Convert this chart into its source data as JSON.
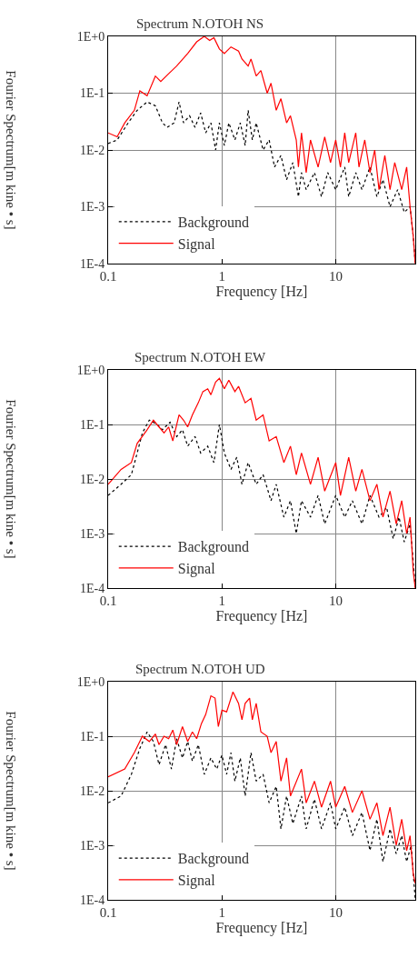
{
  "chart_data": [
    {
      "type": "line",
      "title": "Spectrum N.OTOH NS",
      "xlabel": "Frequency [Hz]",
      "ylabel": "Fourier Spectrum[m kine • s]",
      "log": "xy",
      "grid": true,
      "legend": "bottom left",
      "xlim": [
        0.1,
        50
      ],
      "ylim": [
        0.0001,
        1
      ],
      "xticks": [
        0.1,
        1,
        10
      ],
      "yticks": [
        {
          "value": 0.0001,
          "label": "1E-4"
        },
        {
          "value": 0.001,
          "label": "1E-3"
        },
        {
          "value": 0.01,
          "label": "1E-2"
        },
        {
          "value": 0.1,
          "label": "1E-1"
        },
        {
          "value": 1,
          "label": "1E+0"
        }
      ],
      "series": [
        {
          "name": "Background",
          "color": "#000000",
          "line_style": "dotted",
          "x": [
            0.1,
            0.12,
            0.15,
            0.18,
            0.22,
            0.26,
            0.3,
            0.33,
            0.38,
            0.42,
            0.46,
            0.52,
            0.58,
            0.65,
            0.72,
            0.8,
            0.88,
            0.95,
            1.05,
            1.15,
            1.3,
            1.45,
            1.6,
            1.7,
            1.85,
            2.0,
            2.3,
            2.6,
            2.9,
            3.3,
            3.7,
            4.2,
            4.7,
            5,
            5.5,
            6.5,
            7.5,
            8.5,
            10,
            12,
            13,
            15,
            17,
            20,
            23,
            26,
            30,
            35,
            40,
            45,
            48,
            50
          ],
          "values": [
            0.013,
            0.015,
            0.03,
            0.05,
            0.07,
            0.06,
            0.03,
            0.025,
            0.03,
            0.07,
            0.03,
            0.04,
            0.025,
            0.045,
            0.02,
            0.03,
            0.01,
            0.03,
            0.012,
            0.03,
            0.015,
            0.03,
            0.012,
            0.05,
            0.015,
            0.03,
            0.01,
            0.015,
            0.005,
            0.008,
            0.003,
            0.006,
            0.0015,
            0.004,
            0.002,
            0.004,
            0.0015,
            0.004,
            0.002,
            0.005,
            0.0015,
            0.004,
            0.002,
            0.005,
            0.0015,
            0.003,
            0.001,
            0.002,
            0.0008,
            0.001,
            0.0003,
            0.0001
          ]
        },
        {
          "name": "Signal",
          "color": "#ff0000",
          "line_style": "solid",
          "x": [
            0.1,
            0.12,
            0.14,
            0.17,
            0.19,
            0.22,
            0.26,
            0.29,
            0.34,
            0.4,
            0.5,
            0.6,
            0.7,
            0.78,
            0.85,
            0.95,
            1.05,
            1.2,
            1.4,
            1.5,
            1.7,
            1.8,
            2.0,
            2.2,
            2.5,
            2.7,
            3,
            3.3,
            3.7,
            4,
            4.5,
            4.7,
            5,
            5.5,
            6,
            7,
            8,
            9,
            10,
            11,
            12,
            13,
            15,
            16,
            18,
            20,
            22,
            24,
            27,
            30,
            33,
            38,
            42,
            45,
            48,
            50
          ],
          "values": [
            0.02,
            0.017,
            0.03,
            0.05,
            0.11,
            0.09,
            0.2,
            0.16,
            0.22,
            0.3,
            0.5,
            0.8,
            1.0,
            0.85,
            0.95,
            0.6,
            0.5,
            0.65,
            0.55,
            0.4,
            0.3,
            0.4,
            0.2,
            0.25,
            0.1,
            0.15,
            0.05,
            0.08,
            0.03,
            0.04,
            0.015,
            0.005,
            0.02,
            0.004,
            0.015,
            0.005,
            0.017,
            0.006,
            0.015,
            0.005,
            0.02,
            0.006,
            0.02,
            0.005,
            0.015,
            0.004,
            0.01,
            0.002,
            0.008,
            0.002,
            0.006,
            0.002,
            0.005,
            0.001,
            0.0003,
            0.0001
          ]
        }
      ]
    },
    {
      "type": "line",
      "title": "Spectrum N.OTOH EW",
      "xlabel": "Frequency [Hz]",
      "ylabel": "Fourier Spectrum[m kine • s]",
      "log": "xy",
      "grid": true,
      "legend": "bottom left",
      "xlim": [
        0.1,
        50
      ],
      "ylim": [
        0.0001,
        1
      ],
      "xticks": [
        0.1,
        1,
        10
      ],
      "yticks": [
        {
          "value": 0.0001,
          "label": "1E-4"
        },
        {
          "value": 0.001,
          "label": "1E-3"
        },
        {
          "value": 0.01,
          "label": "1E-2"
        },
        {
          "value": 0.1,
          "label": "1E-1"
        },
        {
          "value": 1,
          "label": "1E+0"
        }
      ],
      "series": [
        {
          "name": "Background",
          "color": "#000000",
          "line_style": "dotted",
          "x": [
            0.1,
            0.13,
            0.16,
            0.18,
            0.2,
            0.23,
            0.27,
            0.3,
            0.35,
            0.4,
            0.45,
            0.5,
            0.58,
            0.65,
            0.75,
            0.85,
            0.95,
            1.05,
            1.2,
            1.35,
            1.5,
            1.7,
            2,
            2.3,
            2.7,
            3,
            3.5,
            4,
            4.5,
            5,
            6,
            7,
            8,
            10,
            12,
            14,
            17,
            20,
            24,
            28,
            32,
            36,
            40,
            45,
            48,
            50
          ],
          "values": [
            0.005,
            0.008,
            0.012,
            0.03,
            0.07,
            0.12,
            0.1,
            0.08,
            0.11,
            0.06,
            0.08,
            0.04,
            0.06,
            0.03,
            0.04,
            0.02,
            0.1,
            0.03,
            0.015,
            0.025,
            0.008,
            0.02,
            0.008,
            0.012,
            0.004,
            0.008,
            0.002,
            0.004,
            0.001,
            0.004,
            0.002,
            0.005,
            0.0015,
            0.005,
            0.002,
            0.004,
            0.0015,
            0.005,
            0.002,
            0.003,
            0.0008,
            0.002,
            0.0007,
            0.0015,
            0.0003,
            0.0001
          ]
        },
        {
          "name": "Signal",
          "color": "#ff0000",
          "line_style": "solid",
          "x": [
            0.1,
            0.13,
            0.16,
            0.18,
            0.22,
            0.25,
            0.28,
            0.31,
            0.34,
            0.37,
            0.42,
            0.46,
            0.5,
            0.55,
            0.62,
            0.68,
            0.75,
            0.8,
            0.88,
            0.95,
            1.05,
            1.15,
            1.3,
            1.4,
            1.6,
            1.8,
            2,
            2.3,
            2.6,
            3,
            3.5,
            4,
            4.5,
            5,
            6,
            7,
            8,
            10,
            11,
            13,
            15,
            17,
            20,
            23,
            26,
            30,
            34,
            38,
            42,
            45,
            48,
            50
          ],
          "values": [
            0.008,
            0.015,
            0.02,
            0.045,
            0.08,
            0.12,
            0.09,
            0.07,
            0.09,
            0.05,
            0.15,
            0.12,
            0.09,
            0.15,
            0.25,
            0.4,
            0.45,
            0.35,
            0.6,
            0.7,
            0.45,
            0.65,
            0.4,
            0.5,
            0.25,
            0.3,
            0.12,
            0.15,
            0.05,
            0.06,
            0.02,
            0.04,
            0.012,
            0.03,
            0.008,
            0.025,
            0.006,
            0.02,
            0.005,
            0.025,
            0.006,
            0.015,
            0.004,
            0.008,
            0.002,
            0.006,
            0.0015,
            0.004,
            0.001,
            0.002,
            0.0002,
            0.0001
          ]
        }
      ]
    },
    {
      "type": "line",
      "title": "Spectrum N.OTOH UD",
      "xlabel": "Frequency [Hz]",
      "ylabel": "Fourier Spectrum[m kine • s]",
      "log": "xy",
      "grid": true,
      "legend": "bottom left",
      "xlim": [
        0.1,
        50
      ],
      "ylim": [
        0.0001,
        1
      ],
      "xticks": [
        0.1,
        1,
        10
      ],
      "yticks": [
        {
          "value": 0.0001,
          "label": "1E-4"
        },
        {
          "value": 0.001,
          "label": "1E-3"
        },
        {
          "value": 0.01,
          "label": "1E-2"
        },
        {
          "value": 0.1,
          "label": "1E-1"
        },
        {
          "value": 1,
          "label": "1E+0"
        }
      ],
      "series": [
        {
          "name": "Background",
          "color": "#000000",
          "line_style": "dotted",
          "x": [
            0.1,
            0.13,
            0.16,
            0.19,
            0.22,
            0.25,
            0.28,
            0.32,
            0.36,
            0.4,
            0.45,
            0.5,
            0.55,
            0.62,
            0.7,
            0.8,
            0.9,
            1.0,
            1.1,
            1.2,
            1.3,
            1.45,
            1.6,
            1.8,
            2,
            2.3,
            2.6,
            3,
            3.3,
            3.7,
            4.2,
            5,
            5.5,
            6.5,
            7.5,
            9,
            10,
            12,
            14,
            17,
            20,
            23,
            26,
            30,
            34,
            38,
            42,
            46,
            50
          ],
          "values": [
            0.006,
            0.008,
            0.02,
            0.06,
            0.12,
            0.08,
            0.03,
            0.07,
            0.025,
            0.09,
            0.04,
            0.08,
            0.035,
            0.07,
            0.02,
            0.04,
            0.025,
            0.045,
            0.02,
            0.05,
            0.015,
            0.04,
            0.008,
            0.05,
            0.015,
            0.02,
            0.006,
            0.012,
            0.002,
            0.008,
            0.0025,
            0.008,
            0.002,
            0.007,
            0.002,
            0.006,
            0.002,
            0.005,
            0.0015,
            0.004,
            0.0008,
            0.003,
            0.0005,
            0.002,
            0.0007,
            0.0015,
            0.0005,
            0.001,
            0.0001
          ]
        },
        {
          "name": "Signal",
          "color": "#ff0000",
          "line_style": "solid",
          "x": [
            0.1,
            0.14,
            0.17,
            0.2,
            0.23,
            0.26,
            0.28,
            0.31,
            0.34,
            0.37,
            0.4,
            0.45,
            0.5,
            0.55,
            0.6,
            0.66,
            0.72,
            0.8,
            0.87,
            0.93,
            1.0,
            1.1,
            1.25,
            1.4,
            1.5,
            1.6,
            1.75,
            1.85,
            2,
            2.2,
            2.5,
            2.7,
            3,
            3.3,
            3.7,
            4,
            5,
            5.5,
            6.5,
            7.5,
            9,
            10,
            12,
            14,
            17,
            20,
            23,
            26,
            30,
            34,
            38,
            42,
            45,
            48,
            50
          ],
          "values": [
            0.018,
            0.025,
            0.05,
            0.1,
            0.08,
            0.11,
            0.07,
            0.1,
            0.09,
            0.13,
            0.07,
            0.15,
            0.08,
            0.12,
            0.09,
            0.17,
            0.25,
            0.55,
            0.5,
            0.15,
            0.3,
            0.28,
            0.65,
            0.4,
            0.2,
            0.4,
            0.5,
            0.2,
            0.4,
            0.12,
            0.1,
            0.05,
            0.08,
            0.015,
            0.04,
            0.008,
            0.025,
            0.006,
            0.015,
            0.005,
            0.015,
            0.005,
            0.012,
            0.004,
            0.01,
            0.003,
            0.006,
            0.0015,
            0.005,
            0.001,
            0.003,
            0.0008,
            0.0015,
            0.0003,
            0.0002
          ]
        }
      ]
    }
  ]
}
